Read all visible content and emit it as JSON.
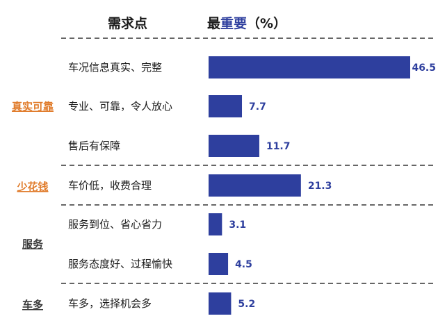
{
  "header": {
    "col1": "需求点",
    "col2_prefix": "最",
    "col2_accent": "重要",
    "col2_suffix": "（%）"
  },
  "chart_data": {
    "type": "bar",
    "orientation": "horizontal",
    "categories": [
      "车况信息真实、完整",
      "专业、可靠，令人放心",
      "售后有保障",
      "车价低，收费合理",
      "服务到位、省心省力",
      "服务态度好、过程愉快",
      "车多，选择机会多"
    ],
    "values": [
      46.5,
      7.7,
      11.7,
      21.3,
      3.1,
      4.5,
      5.2
    ],
    "value_labels": [
      "46.5",
      "7.7",
      "11.7",
      "21.3",
      "3.1",
      "4.5",
      "5.2"
    ],
    "groups": [
      {
        "label": "真实可靠",
        "color": "#e07b2a",
        "items": [
          0,
          1,
          2
        ]
      },
      {
        "label": "少花钱",
        "color": "#e07b2a",
        "items": [
          3
        ]
      },
      {
        "label": "服务",
        "color": "#3a3a3a",
        "items": [
          4,
          5
        ]
      },
      {
        "label": "车多",
        "color": "#3a3a3a",
        "items": [
          6
        ]
      }
    ],
    "xlim": [
      0,
      46.5
    ],
    "grid": false,
    "bar_color": "#2e3f9e",
    "value_label_color": "#2e3f9e"
  }
}
